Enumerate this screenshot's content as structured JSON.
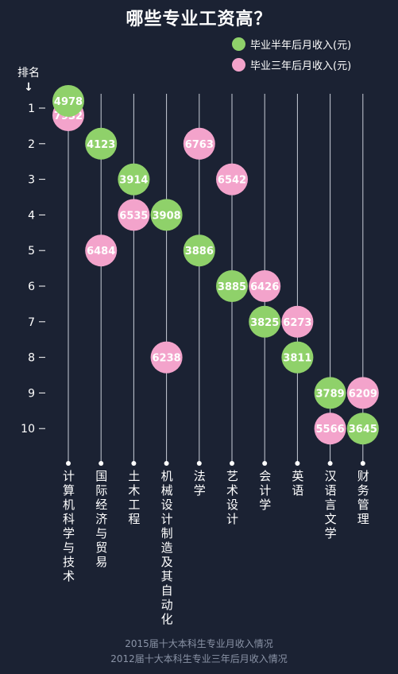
{
  "title": "哪些专业工资高？",
  "legend": [
    {
      "label": "毕业半年后月收入(元)",
      "color": "#8fd16a"
    },
    {
      "label": "毕业三年后月收入(元)",
      "color": "#f3a3cb"
    }
  ],
  "y_axis_title": "排名",
  "y_axis_arrow": "↓",
  "footer": [
    "2015届十大本科生专业月收入情况",
    "2012届十大本科生专业三年后月收入情况"
  ],
  "chart_data": {
    "type": "scatter",
    "title": "哪些专业工资高？",
    "ylabel": "排名",
    "y_ticks": [
      "1",
      "2",
      "3",
      "4",
      "5",
      "6",
      "7",
      "8",
      "9",
      "10"
    ],
    "ylim": [
      1,
      10
    ],
    "y_inverted": true,
    "categories": [
      "计算机科学与技术",
      "国际经济与贸易",
      "土木工程",
      "机械设计制造及其自动化",
      "法学",
      "艺术设计",
      "会计学",
      "英语",
      "汉语言文学",
      "财务管理"
    ],
    "series": [
      {
        "name": "毕业半年后月收入(元)",
        "color": "#8fd16a",
        "points": [
          {
            "category": "计算机科学与技术",
            "rank": 1,
            "value": 4978
          },
          {
            "category": "国际经济与贸易",
            "rank": 2,
            "value": 4123
          },
          {
            "category": "土木工程",
            "rank": 3,
            "value": 3914
          },
          {
            "category": "机械设计制造及其自动化",
            "rank": 4,
            "value": 3908
          },
          {
            "category": "法学",
            "rank": 5,
            "value": 3886
          },
          {
            "category": "艺术设计",
            "rank": 6,
            "value": 3885
          },
          {
            "category": "会计学",
            "rank": 7,
            "value": 3825
          },
          {
            "category": "英语",
            "rank": 8,
            "value": 3811
          },
          {
            "category": "汉语言文学",
            "rank": 9,
            "value": 3789
          },
          {
            "category": "财务管理",
            "rank": 10,
            "value": 3645
          }
        ]
      },
      {
        "name": "毕业三年后月收入(元)",
        "color": "#f3a3cb",
        "points": [
          {
            "category": "计算机科学与技术",
            "rank": 1,
            "value": 7932
          },
          {
            "category": "法学",
            "rank": 2,
            "value": 6763
          },
          {
            "category": "艺术设计",
            "rank": 3,
            "value": 6542
          },
          {
            "category": "土木工程",
            "rank": 4,
            "value": 6535
          },
          {
            "category": "国际经济与贸易",
            "rank": 5,
            "value": 6484
          },
          {
            "category": "会计学",
            "rank": 6,
            "value": 6426
          },
          {
            "category": "英语",
            "rank": 7,
            "value": 6273
          },
          {
            "category": "机械设计制造及其自动化",
            "rank": 8,
            "value": 6238
          },
          {
            "category": "财务管理",
            "rank": 9,
            "value": 6209
          },
          {
            "category": "汉语言文学",
            "rank": 10,
            "value": 5566
          }
        ]
      }
    ]
  }
}
